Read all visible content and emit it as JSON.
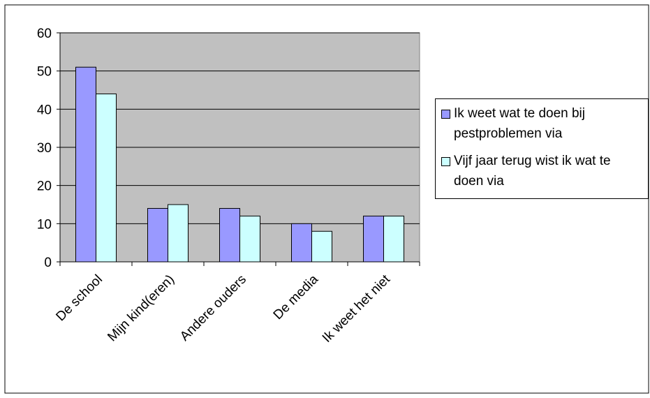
{
  "chart_data": {
    "type": "bar",
    "categories": [
      "De school",
      "Mijn kind(eren)",
      "Andere ouders",
      "De media",
      "Ik weet het niet"
    ],
    "series": [
      {
        "name": "Ik weet wat te doen bij pestproblemen via",
        "values": [
          51,
          14,
          14,
          10,
          12
        ],
        "color": "#9999ff"
      },
      {
        "name": "Vijf jaar terug wist ik wat te doen via",
        "values": [
          44,
          15,
          12,
          8,
          12
        ],
        "color": "#ccffff"
      }
    ],
    "y_ticks": [
      "0",
      "10",
      "20",
      "30",
      "40",
      "50",
      "60"
    ],
    "ylim": [
      0,
      60
    ],
    "grid": true,
    "plot_background": "#c0c0c0",
    "legend_position": "right"
  }
}
